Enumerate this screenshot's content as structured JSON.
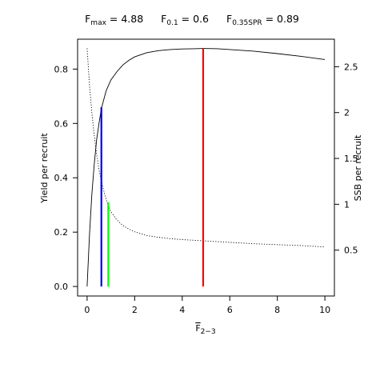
{
  "title": {
    "fmax": {
      "symbol": "F",
      "sub": "max",
      "eq": " = ",
      "value": "4.88"
    },
    "f01": {
      "symbol": "F",
      "sub": "0.1",
      "eq": " = ",
      "value": "0.6"
    },
    "f035": {
      "symbol": "F",
      "sub": "0.35SPR",
      "eq": " = ",
      "value": "0.89"
    }
  },
  "chart_data": {
    "type": "line",
    "xlabel": {
      "symbol": "F",
      "sub": "2−3"
    },
    "ylabel_left": "Yield per recruit",
    "ylabel_right": "SSB per recruit",
    "xlim": [
      -0.4,
      10.4
    ],
    "ylim_left": [
      -0.035,
      0.91
    ],
    "ylim_right": [
      0,
      2.8
    ],
    "x_ticks": [
      "0",
      "2",
      "4",
      "6",
      "8",
      "10"
    ],
    "y_left_ticks": [
      "0.0",
      "0.2",
      "0.4",
      "0.6",
      "0.8"
    ],
    "y_right_ticks": [
      "0.5",
      "1",
      "1.5",
      "2",
      "2.5"
    ],
    "series": [
      {
        "name": "",
        "axis": "left",
        "style": "solid",
        "color": "#000000",
        "x": [
          0,
          0.1,
          0.2,
          0.3,
          0.4,
          0.5,
          0.6,
          0.8,
          1.0,
          1.25,
          1.5,
          1.75,
          2.0,
          2.5,
          3.0,
          3.5,
          4.0,
          4.5,
          4.88,
          5.5,
          6.0,
          7.0,
          8.0,
          9.0,
          10.0
        ],
        "y": [
          0.0,
          0.19,
          0.34,
          0.45,
          0.54,
          0.6,
          0.655,
          0.72,
          0.76,
          0.79,
          0.815,
          0.832,
          0.845,
          0.86,
          0.868,
          0.872,
          0.874,
          0.875,
          0.876,
          0.875,
          0.872,
          0.866,
          0.857,
          0.847,
          0.835
        ]
      },
      {
        "name": "",
        "axis": "right",
        "style": "dotted",
        "color": "#000000",
        "x": [
          0,
          0.1,
          0.2,
          0.3,
          0.4,
          0.5,
          0.6,
          0.75,
          0.89,
          1.0,
          1.25,
          1.5,
          1.75,
          2.0,
          2.5,
          3.0,
          3.5,
          4.0,
          5.0,
          6.0,
          7.0,
          8.0,
          9.0,
          10.0
        ],
        "y": [
          2.7,
          2.3,
          2.0,
          1.75,
          1.55,
          1.38,
          1.25,
          1.1,
          0.98,
          0.92,
          0.83,
          0.77,
          0.73,
          0.7,
          0.66,
          0.64,
          0.625,
          0.615,
          0.6,
          0.585,
          0.57,
          0.56,
          0.55,
          0.535
        ]
      }
    ],
    "vlines": [
      {
        "x": 0.6,
        "from": 0,
        "to": 0.66,
        "color": "#0000ff",
        "label": "F0.1"
      },
      {
        "x": 0.89,
        "from": 0,
        "to": 0.31,
        "color": "#00ff00",
        "label": "F0.35SPR"
      },
      {
        "x": 4.88,
        "from": 0,
        "to": 0.876,
        "color": "#ff0000",
        "label": "Fmax"
      }
    ]
  }
}
